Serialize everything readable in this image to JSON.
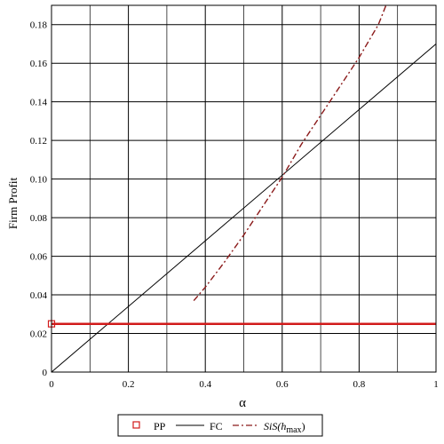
{
  "chart_data": {
    "type": "line",
    "xlabel": "α",
    "ylabel": "Firm Profit",
    "xlim": [
      0,
      1
    ],
    "ylim": [
      0,
      0.19
    ],
    "grid": true,
    "x_ticks": [
      0,
      0.2,
      0.4,
      0.6,
      0.8,
      1
    ],
    "x_tick_labels": [
      "0",
      "0.2",
      "0.4",
      "0.6",
      "0.8",
      "1"
    ],
    "y_ticks": [
      0,
      0.02,
      0.04,
      0.06,
      0.08,
      0.1,
      0.12,
      0.14,
      0.16,
      0.18
    ],
    "y_tick_labels": [
      "0",
      "0.02",
      "0.04",
      "0.06",
      "0.08",
      "0.10",
      "0.12",
      "0.14",
      "0.16",
      "0.18"
    ],
    "legend_position": "bottom-center",
    "series": [
      {
        "name": "PP",
        "style": "solid-thick",
        "color": "#d11a1a",
        "marker": "open-square",
        "x": [
          0,
          1
        ],
        "y": [
          0.025,
          0.025
        ]
      },
      {
        "name": "FC",
        "style": "solid",
        "color": "#000000",
        "x": [
          0,
          1
        ],
        "y": [
          0,
          0.17
        ]
      },
      {
        "name_parts": {
          "main": "SiS(h",
          "sub": "max",
          "close": ")"
        },
        "style": "dash-dot",
        "color": "#8b1a1a",
        "x": [
          0.37,
          0.4,
          0.45,
          0.5,
          0.55,
          0.6,
          0.65,
          0.7,
          0.75,
          0.8,
          0.85,
          0.87
        ],
        "y": [
          0.037,
          0.044,
          0.057,
          0.071,
          0.086,
          0.101,
          0.118,
          0.133,
          0.148,
          0.163,
          0.18,
          0.19
        ]
      }
    ]
  }
}
